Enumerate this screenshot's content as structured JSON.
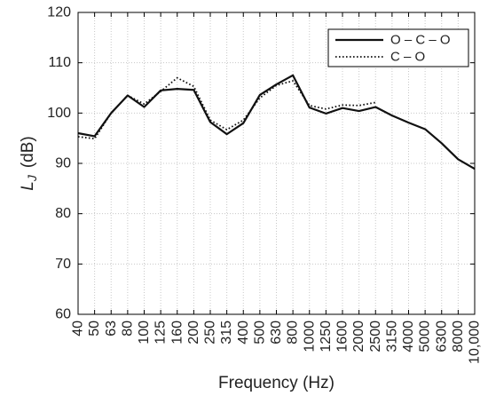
{
  "chart_data": {
    "type": "line",
    "xlabel": "Frequency (Hz)",
    "ylabel_symbol": "L",
    "ylabel_subscript": "J",
    "ylabel_unit": "(dB)",
    "ylim": [
      60,
      120
    ],
    "yticks": [
      60,
      70,
      80,
      90,
      100,
      110,
      120
    ],
    "grid": true,
    "legend_position": "top-right",
    "categories": [
      "40",
      "50",
      "63",
      "80",
      "100",
      "125",
      "160",
      "200",
      "250",
      "315",
      "400",
      "500",
      "630",
      "800",
      "1000",
      "1250",
      "1600",
      "2000",
      "2500",
      "3150",
      "4000",
      "5000",
      "6300",
      "8000",
      "10,000"
    ],
    "series": [
      {
        "name": "O – C – O",
        "style": "solid",
        "color": "#111111",
        "values": [
          96.0,
          95.4,
          100.0,
          103.5,
          101.2,
          104.5,
          104.8,
          104.6,
          98.2,
          95.8,
          98.0,
          103.6,
          105.7,
          107.5,
          101.1,
          99.9,
          101.0,
          100.4,
          101.2,
          99.5,
          98.1,
          96.8,
          94.0,
          90.8,
          88.9
        ]
      },
      {
        "name": "C – O",
        "style": "dotted",
        "color": "#111111",
        "values": [
          95.3,
          94.9,
          100.0,
          103.5,
          101.8,
          104.3,
          107.0,
          105.3,
          98.6,
          96.7,
          98.6,
          103.0,
          105.5,
          106.4,
          101.5,
          100.8,
          101.6,
          101.5,
          102.1,
          null,
          null,
          null,
          null,
          null,
          null
        ]
      }
    ]
  }
}
